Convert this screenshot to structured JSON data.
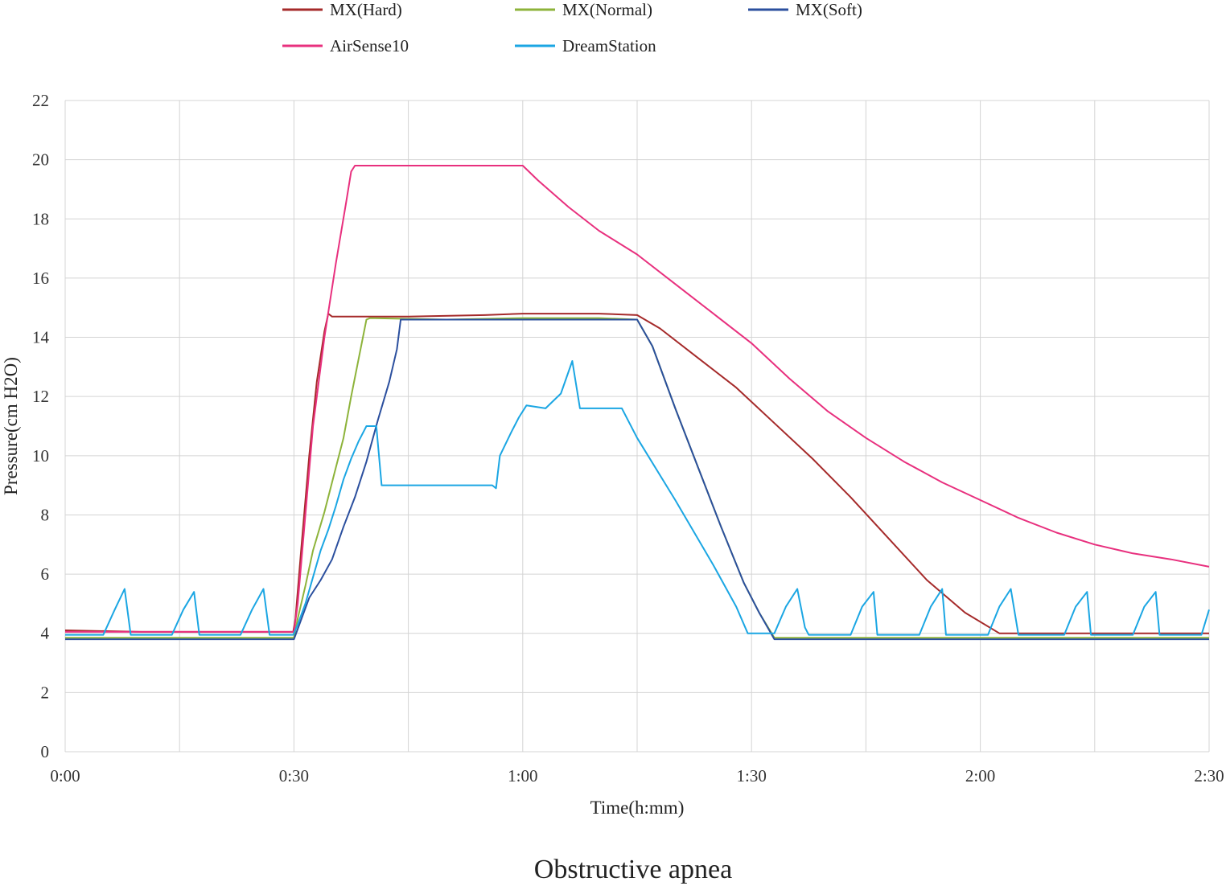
{
  "chart_data": {
    "type": "line",
    "caption": "Obstructive apnea",
    "xlabel": "Time(h:mm)",
    "ylabel": "Pressure(cm H2O)",
    "xlim": [
      0,
      150
    ],
    "ylim": [
      0,
      22
    ],
    "x_unit": "minutes",
    "x_ticks": [
      {
        "value": 0,
        "label": "0:00"
      },
      {
        "value": 30,
        "label": "0:30"
      },
      {
        "value": 60,
        "label": "1:00"
      },
      {
        "value": 90,
        "label": "1:30"
      },
      {
        "value": 120,
        "label": "2:00"
      },
      {
        "value": 150,
        "label": "2:30"
      }
    ],
    "y_ticks": [
      0,
      2,
      4,
      6,
      8,
      10,
      12,
      14,
      16,
      18,
      20,
      22
    ],
    "grid": true,
    "legend": "top",
    "series": [
      {
        "name": "MX(Hard)",
        "color": "#A52A2A",
        "points": [
          [
            0,
            4.1
          ],
          [
            10,
            4.05
          ],
          [
            20,
            4.05
          ],
          [
            29.9,
            4.05
          ],
          [
            30.2,
            4.5
          ],
          [
            31,
            7
          ],
          [
            32,
            10
          ],
          [
            33,
            12.5
          ],
          [
            34,
            14.2
          ],
          [
            34.5,
            14.8
          ],
          [
            35,
            14.7
          ],
          [
            45,
            14.7
          ],
          [
            55,
            14.75
          ],
          [
            60,
            14.8
          ],
          [
            70,
            14.8
          ],
          [
            75,
            14.75
          ],
          [
            78,
            14.3
          ],
          [
            83,
            13.3
          ],
          [
            88,
            12.3
          ],
          [
            93,
            11.1
          ],
          [
            98,
            9.9
          ],
          [
            103,
            8.6
          ],
          [
            108,
            7.2
          ],
          [
            113,
            5.8
          ],
          [
            118,
            4.7
          ],
          [
            122.5,
            4.0
          ],
          [
            130,
            4.0
          ],
          [
            140,
            4.0
          ],
          [
            150,
            4.0
          ]
        ]
      },
      {
        "name": "MX(Normal)",
        "color": "#8DB33A",
        "points": [
          [
            0,
            3.85
          ],
          [
            10,
            3.85
          ],
          [
            20,
            3.85
          ],
          [
            30,
            3.85
          ],
          [
            30.5,
            4.5
          ],
          [
            31.5,
            5.6
          ],
          [
            32.5,
            6.8
          ],
          [
            34,
            8.1
          ],
          [
            35.5,
            9.6
          ],
          [
            36.5,
            10.6
          ],
          [
            37.5,
            12
          ],
          [
            38.5,
            13.3
          ],
          [
            39.5,
            14.6
          ],
          [
            40,
            14.65
          ],
          [
            50,
            14.6
          ],
          [
            60,
            14.65
          ],
          [
            70,
            14.65
          ],
          [
            75,
            14.6
          ],
          [
            77,
            13.7
          ],
          [
            80,
            11.6
          ],
          [
            83,
            9.6
          ],
          [
            86,
            7.6
          ],
          [
            89,
            5.7
          ],
          [
            91,
            4.7
          ],
          [
            93,
            3.85
          ],
          [
            100,
            3.85
          ],
          [
            110,
            3.85
          ],
          [
            120,
            3.85
          ],
          [
            130,
            3.85
          ],
          [
            140,
            3.85
          ],
          [
            150,
            3.85
          ]
        ]
      },
      {
        "name": "MX(Soft)",
        "color": "#2B4F9E",
        "points": [
          [
            0,
            3.8
          ],
          [
            10,
            3.8
          ],
          [
            20,
            3.8
          ],
          [
            30,
            3.8
          ],
          [
            31,
            4.5
          ],
          [
            32,
            5.2
          ],
          [
            33.5,
            5.8
          ],
          [
            35,
            6.5
          ],
          [
            36.5,
            7.6
          ],
          [
            38,
            8.6
          ],
          [
            39.5,
            9.8
          ],
          [
            41,
            11.2
          ],
          [
            42.5,
            12.5
          ],
          [
            43.5,
            13.6
          ],
          [
            44,
            14.6
          ],
          [
            50,
            14.6
          ],
          [
            60,
            14.6
          ],
          [
            70,
            14.6
          ],
          [
            75,
            14.6
          ],
          [
            77,
            13.7
          ],
          [
            80,
            11.6
          ],
          [
            83,
            9.6
          ],
          [
            86,
            7.6
          ],
          [
            89,
            5.7
          ],
          [
            91,
            4.7
          ],
          [
            93,
            3.8
          ],
          [
            100,
            3.8
          ],
          [
            110,
            3.8
          ],
          [
            120,
            3.8
          ],
          [
            130,
            3.8
          ],
          [
            140,
            3.8
          ],
          [
            150,
            3.8
          ]
        ]
      },
      {
        "name": "AirSense10",
        "color": "#E8307E",
        "points": [
          [
            0,
            4.05
          ],
          [
            10,
            4.05
          ],
          [
            20,
            4.05
          ],
          [
            30,
            4.05
          ],
          [
            30.5,
            5
          ],
          [
            31.5,
            8
          ],
          [
            32.5,
            11
          ],
          [
            34,
            14
          ],
          [
            35.5,
            16.5
          ],
          [
            36.8,
            18.5
          ],
          [
            37.5,
            19.6
          ],
          [
            38,
            19.8
          ],
          [
            45,
            19.8
          ],
          [
            55,
            19.8
          ],
          [
            60,
            19.8
          ],
          [
            62,
            19.3
          ],
          [
            66,
            18.4
          ],
          [
            70,
            17.6
          ],
          [
            75,
            16.8
          ],
          [
            80,
            15.8
          ],
          [
            85,
            14.8
          ],
          [
            90,
            13.8
          ],
          [
            95,
            12.6
          ],
          [
            100,
            11.5
          ],
          [
            105,
            10.6
          ],
          [
            110,
            9.8
          ],
          [
            115,
            9.1
          ],
          [
            120,
            8.5
          ],
          [
            125,
            7.9
          ],
          [
            130,
            7.4
          ],
          [
            135,
            7.0
          ],
          [
            140,
            6.7
          ],
          [
            145,
            6.5
          ],
          [
            150,
            6.25
          ]
        ]
      },
      {
        "name": "DreamStation",
        "color": "#1BA6E3",
        "points": [
          [
            0,
            3.95
          ],
          [
            5,
            3.95
          ],
          [
            6.5,
            4.8
          ],
          [
            7.8,
            5.5
          ],
          [
            8.6,
            3.95
          ],
          [
            14,
            3.95
          ],
          [
            15.5,
            4.8
          ],
          [
            16.9,
            5.4
          ],
          [
            17.6,
            3.95
          ],
          [
            23,
            3.95
          ],
          [
            24.5,
            4.8
          ],
          [
            26,
            5.5
          ],
          [
            26.8,
            3.95
          ],
          [
            29.9,
            3.95
          ],
          [
            30.5,
            4.3
          ],
          [
            31.5,
            5
          ],
          [
            32.5,
            5.9
          ],
          [
            33.5,
            6.8
          ],
          [
            34.5,
            7.5
          ],
          [
            35.5,
            8.3
          ],
          [
            36.5,
            9.2
          ],
          [
            37.5,
            9.9
          ],
          [
            38.5,
            10.5
          ],
          [
            39.5,
            11
          ],
          [
            40.8,
            11
          ],
          [
            41.5,
            9
          ],
          [
            50,
            9
          ],
          [
            56,
            9
          ],
          [
            56.5,
            8.9
          ],
          [
            57,
            10
          ],
          [
            58.5,
            10.8
          ],
          [
            59.5,
            11.3
          ],
          [
            60.5,
            11.7
          ],
          [
            63,
            11.6
          ],
          [
            65,
            12.1
          ],
          [
            66.5,
            13.2
          ],
          [
            67.5,
            11.6
          ],
          [
            70,
            11.6
          ],
          [
            73,
            11.6
          ],
          [
            75,
            10.6
          ],
          [
            80,
            8.5
          ],
          [
            85,
            6.3
          ],
          [
            88,
            4.9
          ],
          [
            89.5,
            4.0
          ],
          [
            93,
            4.0
          ],
          [
            94.5,
            4.9
          ],
          [
            96,
            5.5
          ],
          [
            97,
            4.2
          ],
          [
            97.5,
            3.95
          ],
          [
            103,
            3.95
          ],
          [
            104.5,
            4.9
          ],
          [
            106,
            5.4
          ],
          [
            106.5,
            3.95
          ],
          [
            112,
            3.95
          ],
          [
            113.5,
            4.9
          ],
          [
            115,
            5.5
          ],
          [
            115.5,
            3.95
          ],
          [
            121,
            3.95
          ],
          [
            122.5,
            4.9
          ],
          [
            124,
            5.5
          ],
          [
            125,
            3.95
          ],
          [
            131,
            3.95
          ],
          [
            132.5,
            4.9
          ],
          [
            134,
            5.4
          ],
          [
            134.5,
            3.95
          ],
          [
            140,
            3.95
          ],
          [
            141.5,
            4.9
          ],
          [
            143,
            5.4
          ],
          [
            143.5,
            3.95
          ],
          [
            149,
            3.95
          ],
          [
            150,
            4.8
          ]
        ]
      }
    ]
  }
}
